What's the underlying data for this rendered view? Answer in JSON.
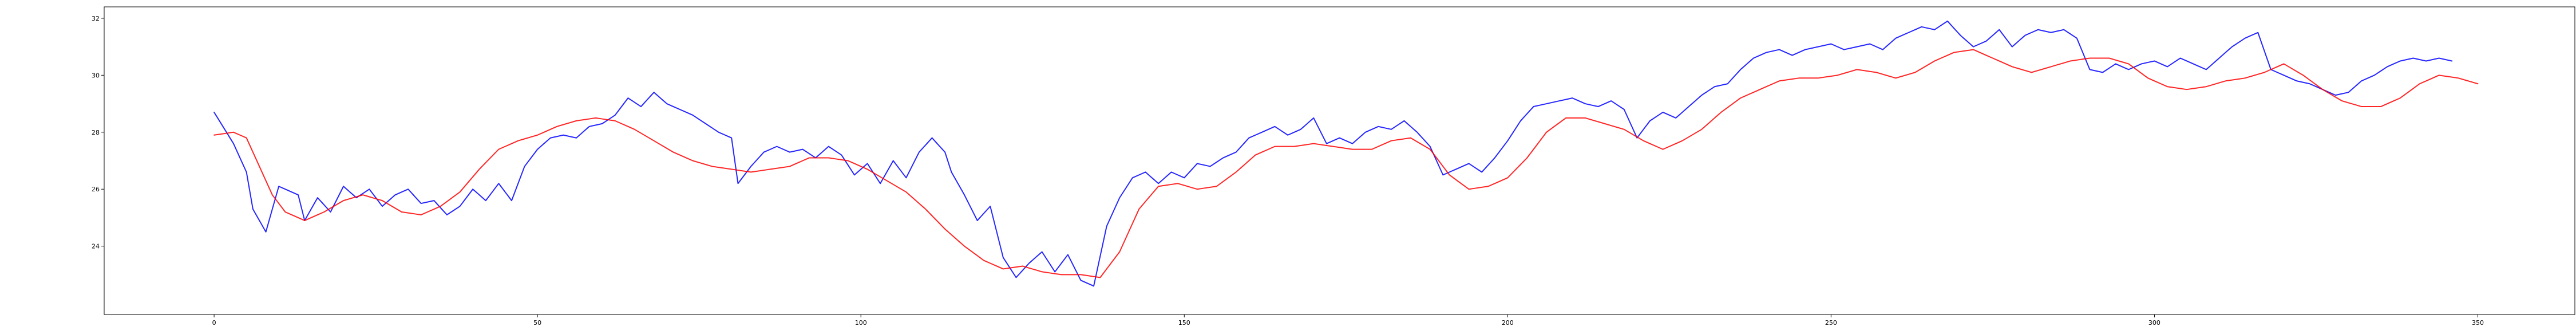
{
  "chart_data": {
    "type": "line",
    "title": "",
    "xlabel": "",
    "ylabel": "",
    "xlim": [
      -17,
      365
    ],
    "ylim": [
      21.6,
      32.4
    ],
    "x_ticks": [
      0,
      50,
      100,
      150,
      200,
      250,
      300,
      350
    ],
    "y_ticks": [
      24,
      26,
      28,
      30,
      32
    ],
    "grid": false,
    "legend": "none",
    "series": [
      {
        "color": "#0000ff",
        "x_step": 1,
        "keypoints": [
          [
            0,
            28.7
          ],
          [
            3,
            27.6
          ],
          [
            5,
            26.6
          ],
          [
            6,
            25.3
          ],
          [
            8,
            24.5
          ],
          [
            10,
            26.1
          ],
          [
            12,
            25.9
          ],
          [
            13,
            25.8
          ],
          [
            14,
            24.9
          ],
          [
            16,
            25.7
          ],
          [
            18,
            25.2
          ],
          [
            20,
            26.1
          ],
          [
            22,
            25.7
          ],
          [
            24,
            26.0
          ],
          [
            26,
            25.4
          ],
          [
            28,
            25.8
          ],
          [
            30,
            26.0
          ],
          [
            32,
            25.5
          ],
          [
            34,
            25.6
          ],
          [
            36,
            25.1
          ],
          [
            38,
            25.4
          ],
          [
            40,
            26.0
          ],
          [
            42,
            25.6
          ],
          [
            44,
            26.2
          ],
          [
            46,
            25.6
          ],
          [
            48,
            26.8
          ],
          [
            50,
            27.4
          ],
          [
            52,
            27.8
          ],
          [
            54,
            27.9
          ],
          [
            56,
            27.8
          ],
          [
            58,
            28.2
          ],
          [
            60,
            28.3
          ],
          [
            62,
            28.6
          ],
          [
            64,
            29.2
          ],
          [
            66,
            28.9
          ],
          [
            68,
            29.4
          ],
          [
            70,
            29.0
          ],
          [
            72,
            28.8
          ],
          [
            74,
            28.6
          ],
          [
            76,
            28.3
          ],
          [
            78,
            28.0
          ],
          [
            80,
            27.8
          ],
          [
            81,
            26.2
          ],
          [
            83,
            26.8
          ],
          [
            85,
            27.3
          ],
          [
            87,
            27.5
          ],
          [
            89,
            27.3
          ],
          [
            91,
            27.4
          ],
          [
            93,
            27.1
          ],
          [
            95,
            27.5
          ],
          [
            97,
            27.2
          ],
          [
            99,
            26.5
          ],
          [
            101,
            26.9
          ],
          [
            103,
            26.2
          ],
          [
            105,
            27.0
          ],
          [
            107,
            26.4
          ],
          [
            109,
            27.3
          ],
          [
            111,
            27.8
          ],
          [
            113,
            27.3
          ],
          [
            114,
            26.6
          ],
          [
            116,
            25.8
          ],
          [
            118,
            24.9
          ],
          [
            120,
            25.4
          ],
          [
            122,
            23.6
          ],
          [
            124,
            22.9
          ],
          [
            126,
            23.4
          ],
          [
            128,
            23.8
          ],
          [
            130,
            23.1
          ],
          [
            132,
            23.7
          ],
          [
            134,
            22.8
          ],
          [
            136,
            22.6
          ],
          [
            138,
            24.7
          ],
          [
            140,
            25.7
          ],
          [
            142,
            26.4
          ],
          [
            144,
            26.6
          ],
          [
            146,
            26.2
          ],
          [
            148,
            26.6
          ],
          [
            150,
            26.4
          ],
          [
            152,
            26.9
          ],
          [
            154,
            26.8
          ],
          [
            156,
            27.1
          ],
          [
            158,
            27.3
          ],
          [
            160,
            27.8
          ],
          [
            162,
            28.0
          ],
          [
            164,
            28.2
          ],
          [
            166,
            27.9
          ],
          [
            168,
            28.1
          ],
          [
            170,
            28.5
          ],
          [
            172,
            27.6
          ],
          [
            174,
            27.8
          ],
          [
            176,
            27.6
          ],
          [
            178,
            28.0
          ],
          [
            180,
            28.2
          ],
          [
            182,
            28.1
          ],
          [
            184,
            28.4
          ],
          [
            186,
            28.0
          ],
          [
            188,
            27.5
          ],
          [
            190,
            26.5
          ],
          [
            192,
            26.7
          ],
          [
            194,
            26.9
          ],
          [
            196,
            26.6
          ],
          [
            198,
            27.1
          ],
          [
            200,
            27.7
          ],
          [
            202,
            28.4
          ],
          [
            204,
            28.9
          ],
          [
            206,
            29.0
          ],
          [
            208,
            29.1
          ],
          [
            210,
            29.2
          ],
          [
            212,
            29.0
          ],
          [
            214,
            28.9
          ],
          [
            216,
            29.1
          ],
          [
            218,
            28.8
          ],
          [
            220,
            27.8
          ],
          [
            222,
            28.4
          ],
          [
            224,
            28.7
          ],
          [
            226,
            28.5
          ],
          [
            228,
            28.9
          ],
          [
            230,
            29.3
          ],
          [
            232,
            29.6
          ],
          [
            234,
            29.7
          ],
          [
            236,
            30.2
          ],
          [
            238,
            30.6
          ],
          [
            240,
            30.8
          ],
          [
            242,
            30.9
          ],
          [
            244,
            30.7
          ],
          [
            246,
            30.9
          ],
          [
            248,
            31.0
          ],
          [
            250,
            31.1
          ],
          [
            252,
            30.9
          ],
          [
            254,
            31.0
          ],
          [
            256,
            31.1
          ],
          [
            258,
            30.9
          ],
          [
            260,
            31.3
          ],
          [
            262,
            31.5
          ],
          [
            264,
            31.7
          ],
          [
            266,
            31.6
          ],
          [
            268,
            31.9
          ],
          [
            270,
            31.4
          ],
          [
            272,
            31.0
          ],
          [
            274,
            31.2
          ],
          [
            276,
            31.6
          ],
          [
            278,
            31.0
          ],
          [
            280,
            31.4
          ],
          [
            282,
            31.6
          ],
          [
            284,
            31.5
          ],
          [
            286,
            31.6
          ],
          [
            288,
            31.3
          ],
          [
            290,
            30.2
          ],
          [
            292,
            30.1
          ],
          [
            294,
            30.4
          ],
          [
            296,
            30.2
          ],
          [
            298,
            30.4
          ],
          [
            300,
            30.5
          ],
          [
            302,
            30.3
          ],
          [
            304,
            30.6
          ],
          [
            306,
            30.4
          ],
          [
            308,
            30.2
          ],
          [
            310,
            30.6
          ],
          [
            312,
            31.0
          ],
          [
            314,
            31.3
          ],
          [
            316,
            31.5
          ],
          [
            318,
            30.2
          ],
          [
            320,
            30.0
          ],
          [
            322,
            29.8
          ],
          [
            324,
            29.7
          ],
          [
            326,
            29.5
          ],
          [
            328,
            29.3
          ],
          [
            330,
            29.4
          ],
          [
            332,
            29.8
          ],
          [
            334,
            30.0
          ],
          [
            336,
            30.3
          ],
          [
            338,
            30.5
          ],
          [
            340,
            30.6
          ],
          [
            342,
            30.5
          ],
          [
            344,
            30.6
          ],
          [
            346,
            30.5
          ]
        ]
      },
      {
        "color": "#ff0000",
        "x_step": 1,
        "keypoints": [
          [
            0,
            27.9
          ],
          [
            3,
            28.0
          ],
          [
            5,
            27.8
          ],
          [
            7,
            26.8
          ],
          [
            9,
            25.8
          ],
          [
            11,
            25.2
          ],
          [
            14,
            24.9
          ],
          [
            17,
            25.2
          ],
          [
            20,
            25.6
          ],
          [
            23,
            25.8
          ],
          [
            26,
            25.6
          ],
          [
            29,
            25.2
          ],
          [
            32,
            25.1
          ],
          [
            35,
            25.4
          ],
          [
            38,
            25.9
          ],
          [
            41,
            26.7
          ],
          [
            44,
            27.4
          ],
          [
            47,
            27.7
          ],
          [
            50,
            27.9
          ],
          [
            53,
            28.2
          ],
          [
            56,
            28.4
          ],
          [
            59,
            28.5
          ],
          [
            62,
            28.4
          ],
          [
            65,
            28.1
          ],
          [
            68,
            27.7
          ],
          [
            71,
            27.3
          ],
          [
            74,
            27.0
          ],
          [
            77,
            26.8
          ],
          [
            80,
            26.7
          ],
          [
            83,
            26.6
          ],
          [
            86,
            26.7
          ],
          [
            89,
            26.8
          ],
          [
            92,
            27.1
          ],
          [
            95,
            27.1
          ],
          [
            98,
            27.0
          ],
          [
            101,
            26.7
          ],
          [
            104,
            26.3
          ],
          [
            107,
            25.9
          ],
          [
            110,
            25.3
          ],
          [
            113,
            24.6
          ],
          [
            116,
            24.0
          ],
          [
            119,
            23.5
          ],
          [
            122,
            23.2
          ],
          [
            125,
            23.3
          ],
          [
            128,
            23.1
          ],
          [
            131,
            23.0
          ],
          [
            134,
            23.0
          ],
          [
            137,
            22.9
          ],
          [
            140,
            23.8
          ],
          [
            143,
            25.3
          ],
          [
            146,
            26.1
          ],
          [
            149,
            26.2
          ],
          [
            152,
            26.0
          ],
          [
            155,
            26.1
          ],
          [
            158,
            26.6
          ],
          [
            161,
            27.2
          ],
          [
            164,
            27.5
          ],
          [
            167,
            27.5
          ],
          [
            170,
            27.6
          ],
          [
            173,
            27.5
          ],
          [
            176,
            27.4
          ],
          [
            179,
            27.4
          ],
          [
            182,
            27.7
          ],
          [
            185,
            27.8
          ],
          [
            188,
            27.4
          ],
          [
            191,
            26.5
          ],
          [
            194,
            26.0
          ],
          [
            197,
            26.1
          ],
          [
            200,
            26.4
          ],
          [
            203,
            27.1
          ],
          [
            206,
            28.0
          ],
          [
            209,
            28.5
          ],
          [
            212,
            28.5
          ],
          [
            215,
            28.3
          ],
          [
            218,
            28.1
          ],
          [
            221,
            27.7
          ],
          [
            224,
            27.4
          ],
          [
            227,
            27.7
          ],
          [
            230,
            28.1
          ],
          [
            233,
            28.7
          ],
          [
            236,
            29.2
          ],
          [
            239,
            29.5
          ],
          [
            242,
            29.8
          ],
          [
            245,
            29.9
          ],
          [
            248,
            29.9
          ],
          [
            251,
            30.0
          ],
          [
            254,
            30.2
          ],
          [
            257,
            30.1
          ],
          [
            260,
            29.9
          ],
          [
            263,
            30.1
          ],
          [
            266,
            30.5
          ],
          [
            269,
            30.8
          ],
          [
            272,
            30.9
          ],
          [
            275,
            30.6
          ],
          [
            278,
            30.3
          ],
          [
            281,
            30.1
          ],
          [
            284,
            30.3
          ],
          [
            287,
            30.5
          ],
          [
            290,
            30.6
          ],
          [
            293,
            30.6
          ],
          [
            296,
            30.4
          ],
          [
            299,
            29.9
          ],
          [
            302,
            29.6
          ],
          [
            305,
            29.5
          ],
          [
            308,
            29.6
          ],
          [
            311,
            29.8
          ],
          [
            314,
            29.9
          ],
          [
            317,
            30.1
          ],
          [
            320,
            30.4
          ],
          [
            323,
            30.0
          ],
          [
            326,
            29.5
          ],
          [
            329,
            29.1
          ],
          [
            332,
            28.9
          ],
          [
            335,
            28.9
          ],
          [
            338,
            29.2
          ],
          [
            341,
            29.7
          ],
          [
            344,
            30.0
          ],
          [
            347,
            29.9
          ],
          [
            350,
            29.7
          ]
        ]
      }
    ]
  }
}
